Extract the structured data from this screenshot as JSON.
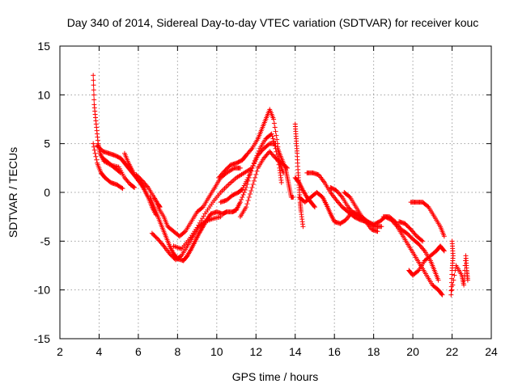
{
  "chart_data": {
    "type": "scatter",
    "title": "Day 340 of 2014, Sidereal Day-to-day VTEC variation (SDTVAR) for receiver kouc",
    "xlabel": "GPS time / hours",
    "ylabel": "SDTVAR / TECUs",
    "xlim": [
      2,
      24
    ],
    "ylim": [
      -15,
      15
    ],
    "xticks": [
      2,
      4,
      6,
      8,
      10,
      12,
      14,
      16,
      18,
      20,
      22,
      24
    ],
    "yticks": [
      -15,
      -10,
      -5,
      0,
      5,
      10,
      15
    ],
    "grid": true,
    "marker": "+",
    "series": [
      {
        "name": "SDTVAR",
        "color": "#ff0000",
        "tracks": [
          [
            [
              3.7,
              12
            ],
            [
              3.75,
              9
            ],
            [
              3.85,
              7
            ],
            [
              3.95,
              5
            ],
            [
              4.05,
              4
            ],
            [
              4.25,
              3.2
            ],
            [
              4.6,
              2.8
            ],
            [
              5.0,
              2.6
            ],
            [
              5.3,
              1.5
            ],
            [
              5.6,
              0.8
            ],
            [
              5.8,
              0.5
            ]
          ],
          [
            [
              3.7,
              5
            ],
            [
              3.9,
              3
            ],
            [
              4.1,
              2
            ],
            [
              4.3,
              1.5
            ],
            [
              4.6,
              1.0
            ],
            [
              4.9,
              0.8
            ],
            [
              5.2,
              0.4
            ]
          ],
          [
            [
              3.9,
              4.8
            ],
            [
              4.2,
              4.2
            ],
            [
              4.5,
              4.0
            ],
            [
              4.8,
              3.8
            ],
            [
              5.1,
              3.5
            ],
            [
              5.3,
              3.0
            ],
            [
              5.5,
              2.5
            ],
            [
              5.7,
              2.0
            ],
            [
              5.9,
              1.5
            ],
            [
              6.1,
              1.0
            ],
            [
              6.3,
              0.3
            ],
            [
              6.5,
              -0.5
            ],
            [
              6.7,
              -1.5
            ],
            [
              6.9,
              -2.3
            ]
          ],
          [
            [
              4.2,
              3.5
            ],
            [
              4.5,
              3.0
            ],
            [
              4.8,
              2.5
            ],
            [
              5.1,
              2.0
            ]
          ],
          [
            [
              5.3,
              4.0
            ],
            [
              5.5,
              3.0
            ],
            [
              5.7,
              2.2
            ],
            [
              6.0,
              1.2
            ],
            [
              6.3,
              0.5
            ]
          ],
          [
            [
              5.9,
              1.8
            ],
            [
              6.2,
              1.2
            ],
            [
              6.5,
              0.5
            ],
            [
              6.8,
              -0.5
            ],
            [
              7.0,
              -1.2
            ],
            [
              7.1,
              -1.5
            ]
          ],
          [
            [
              6.6,
              -0.5
            ],
            [
              6.8,
              -1.5
            ],
            [
              7.0,
              -2.5
            ],
            [
              7.2,
              -3.5
            ],
            [
              7.4,
              -4.5
            ],
            [
              7.6,
              -5.5
            ],
            [
              7.8,
              -6.3
            ],
            [
              8.0,
              -6.8
            ],
            [
              8.3,
              -7.0
            ],
            [
              8.5,
              -6.5
            ],
            [
              8.7,
              -5.8
            ],
            [
              8.9,
              -5.0
            ],
            [
              9.1,
              -4.2
            ],
            [
              9.3,
              -3.5
            ],
            [
              9.5,
              -2.8
            ],
            [
              9.7,
              -2.2
            ],
            [
              10.0,
              -2.0
            ],
            [
              10.3,
              -2.2
            ],
            [
              10.5,
              -2.0
            ]
          ],
          [
            [
              6.7,
              -4.2
            ],
            [
              7.0,
              -4.8
            ],
            [
              7.3,
              -5.5
            ],
            [
              7.6,
              -6.3
            ],
            [
              7.9,
              -6.9
            ],
            [
              8.2,
              -6.5
            ],
            [
              8.5,
              -5.5
            ],
            [
              8.8,
              -4.5
            ],
            [
              9.1,
              -3.5
            ],
            [
              9.4,
              -3.0
            ],
            [
              9.8,
              -2.7
            ],
            [
              10.2,
              -2.5
            ]
          ],
          [
            [
              7.0,
              -1.5
            ],
            [
              7.3,
              -2.5
            ],
            [
              7.5,
              -3.5
            ],
            [
              7.8,
              -4.0
            ],
            [
              8.1,
              -4.5
            ],
            [
              8.4,
              -4.0
            ],
            [
              8.7,
              -3.0
            ],
            [
              9.0,
              -2.0
            ],
            [
              9.3,
              -1.5
            ],
            [
              9.6,
              -0.5
            ],
            [
              9.9,
              0.5
            ],
            [
              10.2,
              1.5
            ],
            [
              10.5,
              2.0
            ],
            [
              10.9,
              2.5
            ],
            [
              11.2,
              2.5
            ]
          ],
          [
            [
              7.8,
              -5.5
            ],
            [
              8.2,
              -5.8
            ],
            [
              8.6,
              -4.8
            ],
            [
              9.0,
              -3.6
            ],
            [
              9.4,
              -2.2
            ],
            [
              9.8,
              -1.0
            ],
            [
              10.2,
              0
            ],
            [
              10.6,
              0.8
            ],
            [
              11.0,
              1.5
            ],
            [
              11.4,
              2.0
            ],
            [
              11.8,
              2.5
            ]
          ],
          [
            [
              10.1,
              1.5
            ],
            [
              10.4,
              2.2
            ],
            [
              10.7,
              2.8
            ],
            [
              11.0,
              3.0
            ],
            [
              11.3,
              3.3
            ],
            [
              11.5,
              3.8
            ],
            [
              11.8,
              4.5
            ],
            [
              12.1,
              5.5
            ],
            [
              12.3,
              6.5
            ],
            [
              12.5,
              7.5
            ],
            [
              12.7,
              8.5
            ],
            [
              12.9,
              7.5
            ],
            [
              13.1,
              5.0
            ],
            [
              13.2,
              3.0
            ],
            [
              13.4,
              2.0
            ]
          ],
          [
            [
              10.2,
              -1.0
            ],
            [
              10.5,
              -0.8
            ],
            [
              10.8,
              -0.3
            ],
            [
              11.1,
              0
            ],
            [
              11.3,
              0.3
            ],
            [
              11.6,
              1.5
            ],
            [
              11.9,
              3.0
            ],
            [
              12.2,
              4.5
            ],
            [
              12.5,
              5.5
            ],
            [
              12.8,
              6.0
            ],
            [
              13.0,
              4.5
            ],
            [
              13.2,
              2.5
            ],
            [
              13.3,
              1.0
            ]
          ],
          [
            [
              10.5,
              -2.0
            ],
            [
              10.8,
              -2.0
            ],
            [
              11.0,
              -1.8
            ],
            [
              11.2,
              -1.0
            ],
            [
              11.5,
              0.5
            ],
            [
              11.8,
              2.5
            ],
            [
              12.1,
              3.8
            ],
            [
              12.4,
              4.5
            ],
            [
              12.7,
              5.0
            ],
            [
              13.0,
              5.0
            ]
          ],
          [
            [
              11.2,
              -2.5
            ],
            [
              11.5,
              -1.5
            ],
            [
              11.8,
              0.5
            ],
            [
              12.1,
              2.5
            ],
            [
              12.4,
              3.5
            ],
            [
              12.7,
              4.2
            ],
            [
              13.0,
              3.5
            ],
            [
              13.3,
              3.0
            ],
            [
              13.6,
              2.5
            ]
          ],
          [
            [
              13.1,
              4.5
            ],
            [
              13.3,
              3.5
            ],
            [
              13.5,
              2.5
            ],
            [
              13.6,
              1.5
            ],
            [
              13.7,
              0.5
            ],
            [
              13.8,
              -0.5
            ],
            [
              13.9,
              -0.5
            ]
          ],
          [
            [
              14.0,
              7.0
            ],
            [
              14.05,
              5.5
            ],
            [
              14.1,
              4.0
            ],
            [
              14.15,
              2.0
            ],
            [
              14.2,
              0.5
            ],
            [
              14.25,
              -1.0
            ],
            [
              14.3,
              -2.0
            ],
            [
              14.4,
              -3.5
            ]
          ],
          [
            [
              14.0,
              1.5
            ],
            [
              14.2,
              1.0
            ],
            [
              14.4,
              0.2
            ],
            [
              14.6,
              -0.5
            ],
            [
              14.8,
              -1.0
            ],
            [
              15.0,
              -1.5
            ]
          ],
          [
            [
              14.2,
              -0.5
            ],
            [
              14.5,
              -1.0
            ],
            [
              14.8,
              -0.5
            ],
            [
              15.1,
              0
            ],
            [
              15.4,
              -0.5
            ],
            [
              15.6,
              -1.3
            ],
            [
              15.8,
              -2.2
            ],
            [
              16.0,
              -3.0
            ],
            [
              16.3,
              -3.2
            ],
            [
              16.6,
              -2.8
            ],
            [
              16.9,
              -2.0
            ],
            [
              17.2,
              -2.2
            ],
            [
              17.5,
              -2.8
            ],
            [
              17.8,
              -3.2
            ],
            [
              18.1,
              -3.5
            ],
            [
              18.4,
              -3.5
            ]
          ],
          [
            [
              14.6,
              2.0
            ],
            [
              14.9,
              2.0
            ],
            [
              15.2,
              1.8
            ],
            [
              15.5,
              1.0
            ],
            [
              15.8,
              0
            ],
            [
              16.1,
              -0.8
            ],
            [
              16.4,
              -1.5
            ],
            [
              16.7,
              -2.0
            ],
            [
              17.0,
              -2.5
            ],
            [
              17.3,
              -2.8
            ],
            [
              17.6,
              -3.0
            ]
          ],
          [
            [
              15.8,
              0.5
            ],
            [
              16.1,
              0.2
            ],
            [
              16.4,
              -0.5
            ],
            [
              16.7,
              -1.5
            ],
            [
              17.0,
              -2.2
            ],
            [
              17.3,
              -2.5
            ],
            [
              17.6,
              -3.0
            ],
            [
              17.9,
              -3.8
            ],
            [
              18.2,
              -4.0
            ]
          ],
          [
            [
              16.5,
              0
            ],
            [
              16.8,
              -0.5
            ],
            [
              17.1,
              -1.5
            ],
            [
              17.4,
              -2.5
            ],
            [
              17.7,
              -3.0
            ],
            [
              18.0,
              -3.3
            ],
            [
              18.3,
              -3.0
            ],
            [
              18.6,
              -2.5
            ],
            [
              18.9,
              -2.8
            ],
            [
              19.2,
              -3.5
            ],
            [
              19.5,
              -4.5
            ],
            [
              19.8,
              -5.5
            ],
            [
              20.1,
              -6.5
            ],
            [
              20.4,
              -7.5
            ],
            [
              20.7,
              -8.5
            ],
            [
              21.0,
              -9.5
            ],
            [
              21.3,
              -10.0
            ],
            [
              21.5,
              -10.5
            ]
          ],
          [
            [
              18.5,
              -2.5
            ],
            [
              18.8,
              -2.5
            ],
            [
              19.1,
              -3.0
            ],
            [
              19.4,
              -3.8
            ],
            [
              19.7,
              -4.2
            ],
            [
              20.0,
              -4.8
            ],
            [
              20.3,
              -5.3
            ],
            [
              20.6,
              -6.0
            ],
            [
              20.9,
              -7.0
            ],
            [
              21.1,
              -8.0
            ],
            [
              21.3,
              -9.0
            ]
          ],
          [
            [
              19.3,
              -3.0
            ],
            [
              19.6,
              -3.2
            ],
            [
              19.9,
              -3.8
            ],
            [
              20.2,
              -4.5
            ],
            [
              20.5,
              -5.0
            ]
          ],
          [
            [
              19.8,
              -8.0
            ],
            [
              20.0,
              -8.5
            ],
            [
              20.3,
              -8.0
            ],
            [
              20.6,
              -7.0
            ],
            [
              20.9,
              -6.5
            ],
            [
              21.2,
              -6.0
            ],
            [
              21.4,
              -5.5
            ],
            [
              21.6,
              -6.0
            ]
          ],
          [
            [
              19.9,
              -1.0
            ],
            [
              20.2,
              -1.0
            ],
            [
              20.5,
              -1.0
            ],
            [
              20.8,
              -1.5
            ],
            [
              21.1,
              -2.5
            ],
            [
              21.4,
              -3.5
            ],
            [
              21.6,
              -4.5
            ]
          ],
          [
            [
              22.0,
              -5.0
            ],
            [
              22.05,
              -6.5
            ],
            [
              22.0,
              -8.0
            ],
            [
              21.95,
              -10.5
            ],
            [
              22.2,
              -7.5
            ],
            [
              22.5,
              -8.5
            ],
            [
              22.6,
              -9.5
            ],
            [
              22.7,
              -6.5
            ],
            [
              22.75,
              -8.0
            ],
            [
              22.8,
              -9.0
            ]
          ]
        ]
      }
    ]
  }
}
